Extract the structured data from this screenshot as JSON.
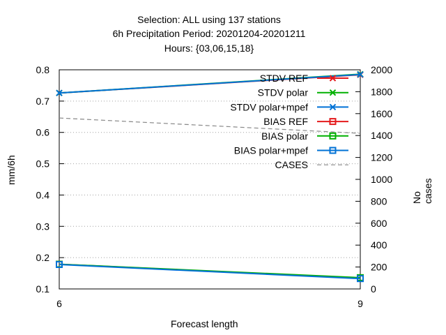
{
  "chart_data": {
    "type": "line",
    "title_lines": [
      "Selection: ALL using   137 stations",
      "6h Precipitation   Period: 20201204-20201211",
      "Hours: {03,06,15,18}"
    ],
    "xlabel": "Forecast length",
    "ylabel": "mm/6h",
    "y2label": "No cases",
    "x": [
      6,
      9
    ],
    "xlim": [
      6,
      9
    ],
    "xticks": [
      "6",
      "9"
    ],
    "ylim": [
      0.1,
      0.8
    ],
    "yticks": [
      "0.1",
      "0.2",
      "0.3",
      "0.4",
      "0.5",
      "0.6",
      "0.7",
      "0.8"
    ],
    "y2lim": [
      0,
      2000
    ],
    "y2ticks": [
      "0",
      "200",
      "400",
      "600",
      "800",
      "1000",
      "1200",
      "1400",
      "1600",
      "1800",
      "2000"
    ],
    "grid": true,
    "legend_position": "top-right",
    "series": [
      {
        "name": "STDV REF",
        "values": [
          0.726,
          0.784
        ],
        "color": "#e41a1c",
        "marker": "x",
        "axis": "left"
      },
      {
        "name": "STDV polar",
        "values": [
          0.726,
          0.786
        ],
        "color": "#00b000",
        "marker": "x",
        "axis": "left"
      },
      {
        "name": "STDV polar+mpef",
        "values": [
          0.726,
          0.785
        ],
        "color": "#0072d6",
        "marker": "x",
        "axis": "left"
      },
      {
        "name": "BIAS REF",
        "values": [
          0.179,
          0.134
        ],
        "color": "#e41a1c",
        "marker": "square",
        "axis": "left"
      },
      {
        "name": "BIAS polar",
        "values": [
          0.179,
          0.136
        ],
        "color": "#00b000",
        "marker": "square",
        "axis": "left"
      },
      {
        "name": "BIAS polar+mpef",
        "values": [
          0.178,
          0.133
        ],
        "color": "#0072d6",
        "marker": "square",
        "axis": "left"
      },
      {
        "name": "CASES",
        "values": [
          1560,
          1420
        ],
        "color": "#888888",
        "marker": "none",
        "dashed": true,
        "axis": "right"
      }
    ]
  }
}
